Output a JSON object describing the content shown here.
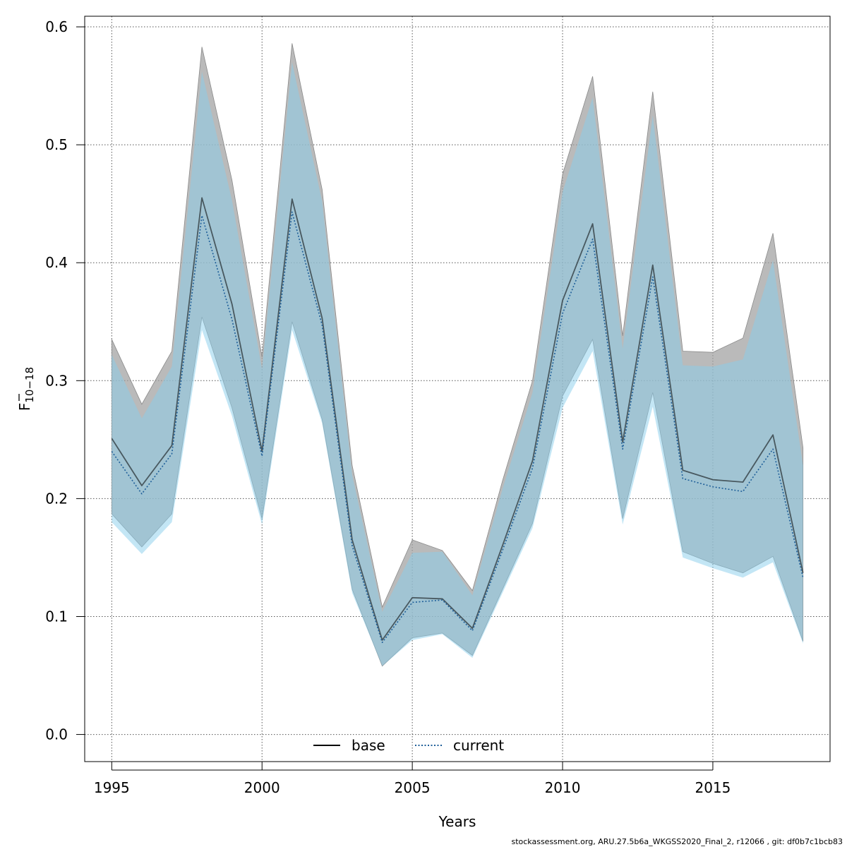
{
  "chart_data": {
    "type": "line",
    "x": [
      1995,
      1996,
      1997,
      1998,
      1999,
      2000,
      2001,
      2002,
      2003,
      2004,
      2005,
      2006,
      2007,
      2008,
      2009,
      2010,
      2011,
      2012,
      2013,
      2014,
      2015,
      2016,
      2017,
      2018
    ],
    "series": [
      {
        "name": "base",
        "color": "#000000",
        "line_style": "solid",
        "band_color": "#a0a0a0",
        "values": [
          0.251,
          0.211,
          0.245,
          0.455,
          0.365,
          0.24,
          0.454,
          0.353,
          0.165,
          0.08,
          0.116,
          0.115,
          0.09,
          0.16,
          0.232,
          0.368,
          0.433,
          0.248,
          0.398,
          0.224,
          0.216,
          0.214,
          0.254,
          0.137
        ],
        "upper": [
          0.335,
          0.28,
          0.325,
          0.583,
          0.47,
          0.32,
          0.586,
          0.462,
          0.228,
          0.108,
          0.165,
          0.156,
          0.122,
          0.215,
          0.3,
          0.475,
          0.558,
          0.338,
          0.545,
          0.325,
          0.324,
          0.336,
          0.425,
          0.243
        ],
        "lower": [
          0.187,
          0.159,
          0.187,
          0.354,
          0.277,
          0.183,
          0.35,
          0.267,
          0.123,
          0.058,
          0.082,
          0.086,
          0.067,
          0.123,
          0.179,
          0.287,
          0.335,
          0.183,
          0.29,
          0.155,
          0.145,
          0.137,
          0.151,
          0.079
        ]
      },
      {
        "name": "current",
        "color": "#1f5f99",
        "line_style": "dotted",
        "band_color": "#87ceeb",
        "values": [
          0.24,
          0.204,
          0.238,
          0.44,
          0.352,
          0.236,
          0.443,
          0.347,
          0.16,
          0.078,
          0.112,
          0.114,
          0.088,
          0.156,
          0.226,
          0.357,
          0.42,
          0.242,
          0.388,
          0.217,
          0.21,
          0.206,
          0.242,
          0.133
        ],
        "upper": [
          0.322,
          0.268,
          0.312,
          0.562,
          0.453,
          0.31,
          0.57,
          0.452,
          0.22,
          0.104,
          0.154,
          0.155,
          0.118,
          0.208,
          0.29,
          0.46,
          0.54,
          0.327,
          0.525,
          0.313,
          0.312,
          0.318,
          0.402,
          0.228
        ],
        "lower": [
          0.18,
          0.153,
          0.18,
          0.343,
          0.27,
          0.178,
          0.343,
          0.264,
          0.12,
          0.058,
          0.08,
          0.085,
          0.065,
          0.12,
          0.175,
          0.277,
          0.325,
          0.178,
          0.278,
          0.15,
          0.141,
          0.133,
          0.146,
          0.077
        ]
      }
    ],
    "xlabel": "Years",
    "ylabel_main": "F",
    "ylabel_sub": "10−18",
    "xticks": [
      1995,
      2000,
      2005,
      2010,
      2015
    ],
    "xtick_labels": [
      "1995",
      "2000",
      "2005",
      "2010",
      "2015"
    ],
    "yticks": [
      0.0,
      0.1,
      0.2,
      0.3,
      0.4,
      0.5,
      0.6
    ],
    "ytick_labels": [
      "0.0",
      "0.1",
      "0.2",
      "0.3",
      "0.4",
      "0.5",
      "0.6"
    ],
    "xlim": [
      1994.1,
      2018.9
    ],
    "ylim": [
      -0.023,
      0.609
    ],
    "grid": true,
    "legend_position": "bottom-center"
  },
  "footer": "stockassessment.org, ARU.27.5b6a_WKGSS2020_Final_2, r12066 , git: df0b7c1bcb83"
}
